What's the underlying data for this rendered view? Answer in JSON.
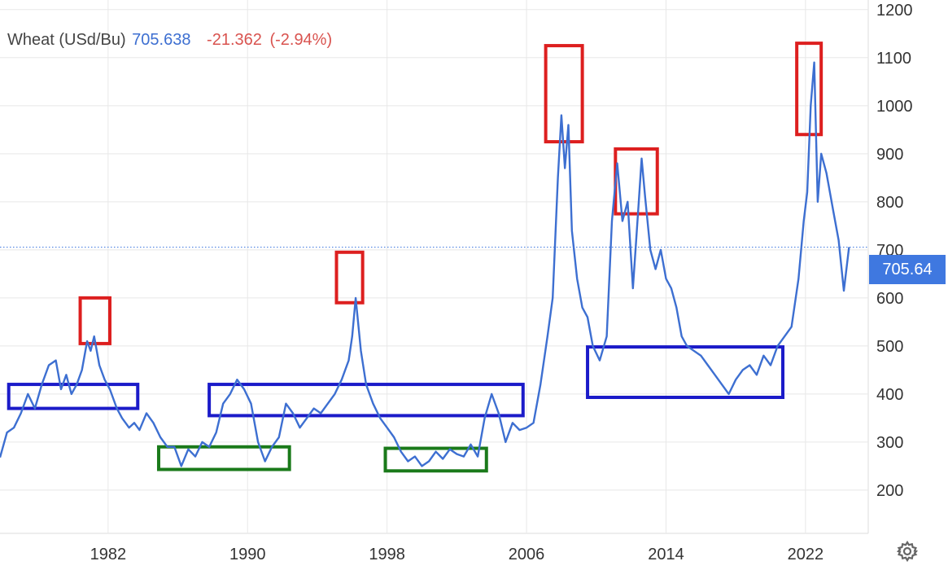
{
  "legend": {
    "title": "Wheat (USd/Bu)",
    "last": "705.638",
    "change": "-21.362",
    "change_pct": "(-2.94%)"
  },
  "price_tag": "705.64",
  "chart_data": {
    "type": "line",
    "title": "",
    "xlabel": "",
    "ylabel": "",
    "xlim": [
      1975.8,
      2025.6
    ],
    "ylim": [
      110,
      1220
    ],
    "current_value": 705.64,
    "x_ticks": [
      "1982",
      "1990",
      "1998",
      "2006",
      "2014",
      "2022"
    ],
    "y_ticks": [
      "200",
      "300",
      "400",
      "500",
      "600",
      "700",
      "800",
      "900",
      "1000",
      "1100",
      "1200"
    ],
    "grid": true,
    "series": [
      {
        "name": "Wheat (USd/Bu)",
        "color": "#3d6fd1",
        "x": [
          1975.8,
          1976.2,
          1976.6,
          1977.0,
          1977.4,
          1977.8,
          1978.2,
          1978.6,
          1979.0,
          1979.3,
          1979.6,
          1979.9,
          1980.2,
          1980.5,
          1980.8,
          1981.0,
          1981.2,
          1981.5,
          1981.8,
          1982.1,
          1982.5,
          1982.8,
          1983.2,
          1983.5,
          1983.8,
          1984.2,
          1984.6,
          1985.0,
          1985.4,
          1985.8,
          1986.2,
          1986.6,
          1987.0,
          1987.4,
          1987.8,
          1988.2,
          1988.6,
          1989.0,
          1989.4,
          1989.8,
          1990.2,
          1990.6,
          1991.0,
          1991.4,
          1991.8,
          1992.2,
          1992.6,
          1993.0,
          1993.4,
          1993.8,
          1994.2,
          1994.6,
          1995.0,
          1995.4,
          1995.8,
          1996.0,
          1996.2,
          1996.5,
          1996.8,
          1997.2,
          1997.6,
          1998.0,
          1998.4,
          1998.8,
          1999.2,
          1999.6,
          2000.0,
          2000.4,
          2000.8,
          2001.2,
          2001.6,
          2002.0,
          2002.4,
          2002.8,
          2003.2,
          2003.6,
          2004.0,
          2004.4,
          2004.8,
          2005.2,
          2005.6,
          2006.0,
          2006.4,
          2006.8,
          2007.2,
          2007.5,
          2007.8,
          2008.0,
          2008.2,
          2008.4,
          2008.6,
          2008.9,
          2009.2,
          2009.5,
          2009.8,
          2010.2,
          2010.6,
          2010.9,
          2011.2,
          2011.5,
          2011.8,
          2012.1,
          2012.4,
          2012.6,
          2012.8,
          2013.1,
          2013.4,
          2013.7,
          2014.0,
          2014.3,
          2014.6,
          2014.9,
          2015.2,
          2015.6,
          2016.0,
          2016.4,
          2016.8,
          2017.2,
          2017.6,
          2018.0,
          2018.4,
          2018.8,
          2019.2,
          2019.6,
          2020.0,
          2020.4,
          2020.8,
          2021.2,
          2021.6,
          2021.9,
          2022.1,
          2022.3,
          2022.5,
          2022.7,
          2022.9,
          2023.2,
          2023.6,
          2023.9,
          2024.2,
          2024.5
        ],
        "y": [
          268,
          320,
          330,
          360,
          400,
          370,
          420,
          460,
          470,
          410,
          440,
          400,
          420,
          450,
          510,
          490,
          520,
          460,
          430,
          410,
          370,
          350,
          330,
          340,
          325,
          360,
          340,
          310,
          290,
          290,
          250,
          285,
          270,
          300,
          290,
          320,
          380,
          400,
          430,
          410,
          380,
          300,
          260,
          290,
          310,
          380,
          360,
          330,
          350,
          370,
          360,
          380,
          400,
          430,
          470,
          520,
          600,
          490,
          420,
          380,
          350,
          330,
          310,
          280,
          260,
          270,
          250,
          260,
          280,
          265,
          285,
          275,
          270,
          295,
          270,
          350,
          400,
          360,
          300,
          340,
          325,
          330,
          340,
          420,
          520,
          600,
          850,
          980,
          870,
          960,
          740,
          640,
          580,
          560,
          500,
          470,
          520,
          760,
          880,
          760,
          800,
          620,
          780,
          890,
          810,
          700,
          660,
          700,
          640,
          620,
          580,
          520,
          500,
          490,
          480,
          460,
          440,
          420,
          400,
          430,
          450,
          460,
          440,
          480,
          460,
          500,
          520,
          540,
          640,
          760,
          820,
          1000,
          1090,
          800,
          900,
          860,
          780,
          720,
          615,
          705.64
        ]
      }
    ],
    "annotations": [
      {
        "color": "#dd1f1f",
        "x": [
          1980.4,
          1982.1
        ],
        "y": [
          505,
          600
        ]
      },
      {
        "color": "#dd1f1f",
        "x": [
          1995.1,
          1996.6
        ],
        "y": [
          590,
          695
        ]
      },
      {
        "color": "#dd1f1f",
        "x": [
          2007.1,
          2009.2
        ],
        "y": [
          925,
          1125
        ]
      },
      {
        "color": "#dd1f1f",
        "x": [
          2011.1,
          2013.5
        ],
        "y": [
          775,
          910
        ]
      },
      {
        "color": "#dd1f1f",
        "x": [
          2021.5,
          2022.9
        ],
        "y": [
          940,
          1130
        ]
      },
      {
        "color": "#1b1bc9",
        "x": [
          1976.3,
          1983.7
        ],
        "y": [
          370,
          420
        ]
      },
      {
        "color": "#1b1bc9",
        "x": [
          1987.8,
          2005.8
        ],
        "y": [
          355,
          420
        ]
      },
      {
        "color": "#1b1bc9",
        "x": [
          2009.5,
          2020.7
        ],
        "y": [
          393,
          498
        ]
      },
      {
        "color": "#1a7a1a",
        "x": [
          1984.9,
          1992.4
        ],
        "y": [
          243,
          290
        ]
      },
      {
        "color": "#1a7a1a",
        "x": [
          1997.9,
          2003.7
        ],
        "y": [
          240,
          287
        ]
      }
    ]
  }
}
